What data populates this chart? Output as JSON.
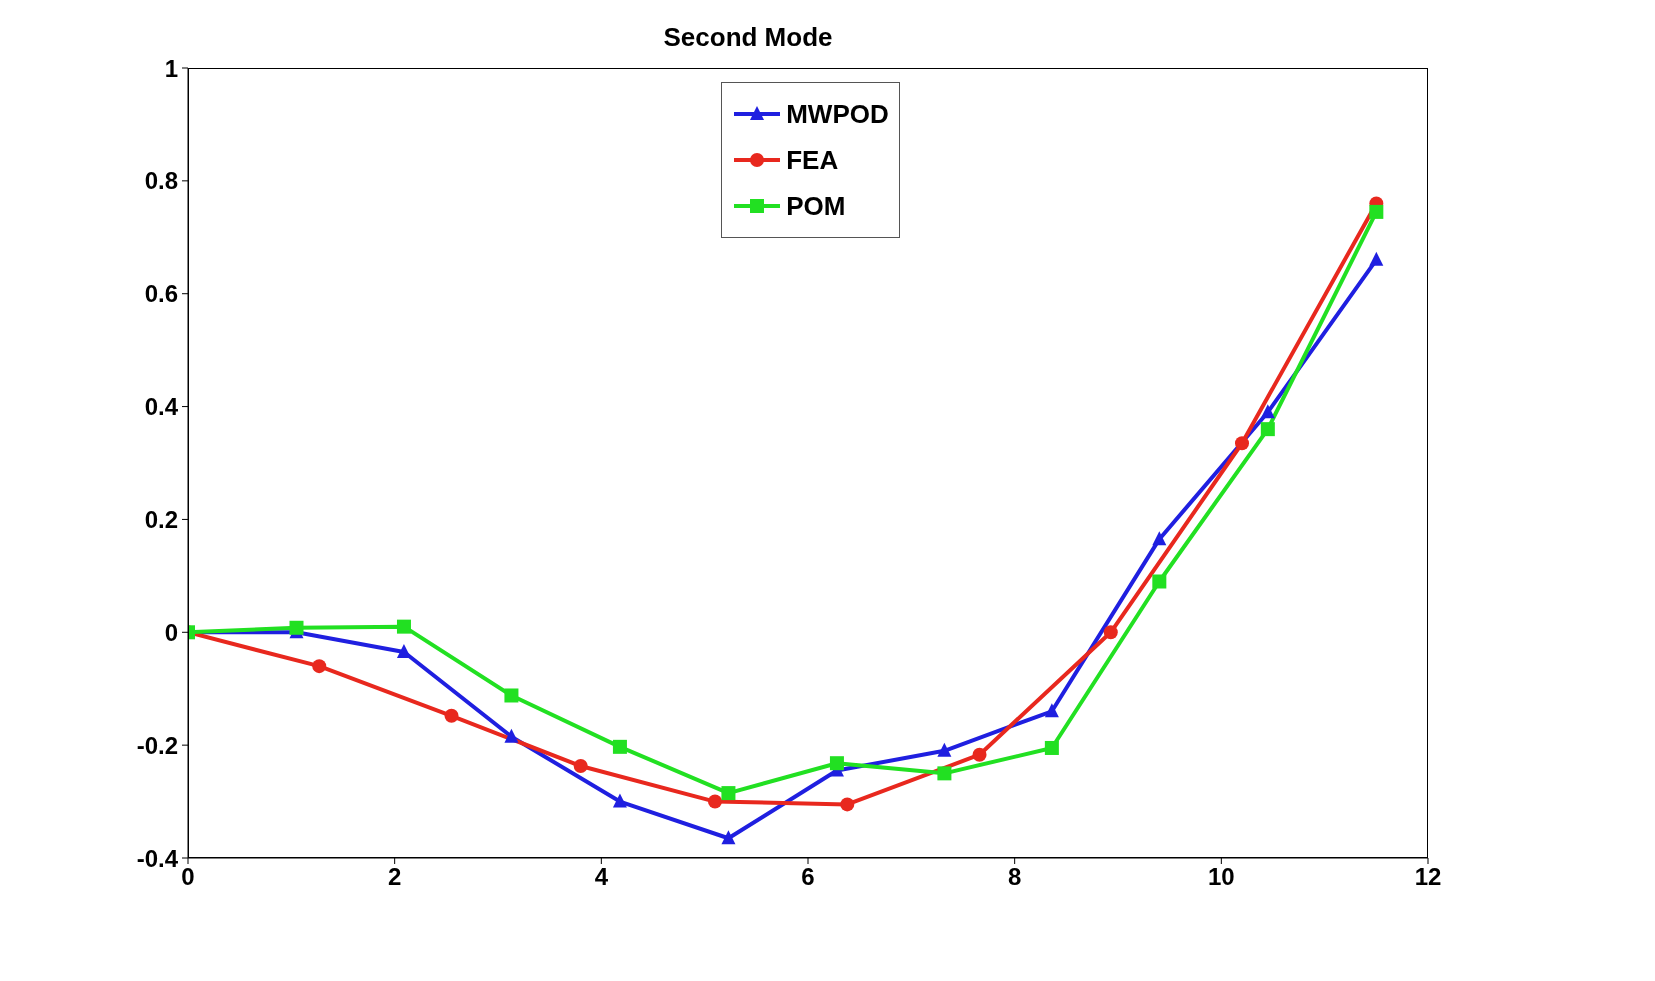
{
  "chart_data": {
    "type": "line",
    "title": "Second Mode",
    "xlim": [
      0,
      12
    ],
    "xticks": [
      0,
      2,
      4,
      6,
      8,
      10,
      12
    ],
    "ylim": [
      -0.4,
      1
    ],
    "yticks": [
      -0.4,
      -0.2,
      0,
      0.2,
      0.4,
      0.6,
      0.8,
      1
    ],
    "grid": false,
    "legend": "top",
    "line_style": "solid",
    "series": [
      {
        "name": "MWPOD",
        "color": "#1f1fe0",
        "marker": "triangle",
        "x": [
          0,
          1.05,
          2.09,
          3.13,
          4.18,
          5.23,
          6.28,
          7.32,
          8.36,
          9.4,
          10.45,
          11.5
        ],
        "values": [
          0,
          0,
          -0.035,
          -0.185,
          -0.3,
          -0.365,
          -0.245,
          -0.21,
          -0.14,
          0.165,
          0.39,
          0.66
        ]
      },
      {
        "name": "FEA",
        "color": "#e8281e",
        "marker": "circle",
        "x": [
          0,
          1.27,
          2.55,
          3.8,
          5.1,
          6.38,
          7.66,
          8.93,
          10.2,
          11.5
        ],
        "values": [
          0,
          -0.06,
          -0.148,
          -0.237,
          -0.3,
          -0.305,
          -0.217,
          0,
          0.335,
          0.76
        ]
      },
      {
        "name": "POM",
        "color": "#22e022",
        "marker": "square",
        "x": [
          0,
          1.05,
          2.09,
          3.13,
          4.18,
          5.23,
          6.28,
          7.32,
          8.36,
          9.4,
          10.45,
          11.5
        ],
        "values": [
          0,
          0.008,
          0.01,
          -0.112,
          -0.203,
          -0.285,
          -0.232,
          -0.25,
          -0.205,
          0.09,
          0.36,
          0.745
        ]
      }
    ]
  }
}
